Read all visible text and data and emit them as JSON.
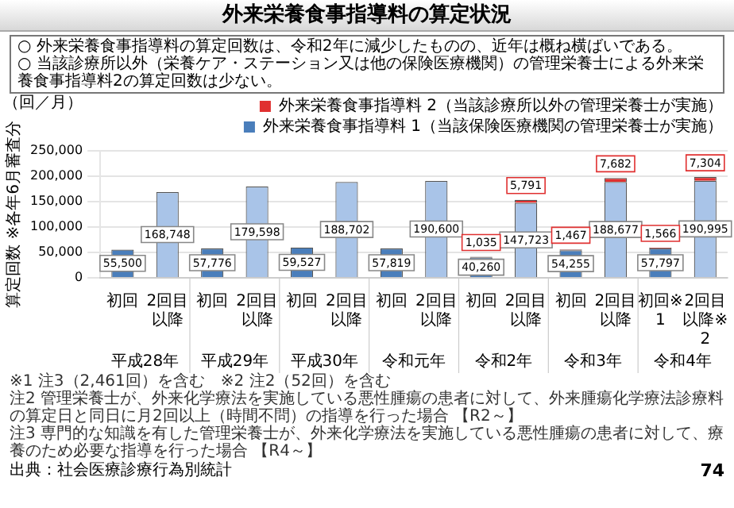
{
  "chart_data": {
    "type": "bar",
    "title": "外来栄養食事指導料の算定状況",
    "subtitle": "○ 外来栄養食事指導料の算定回数は、令和2年に減少したものの、近年は概ね横ばいである。\n○ 当該診療所以外（栄養ケア・ステーション又は他の保険医療機関）の管理栄養士による外来栄養食事指導料2の算定回数は少ない。",
    "ylabel": "算定回数 ※各年6月審査分",
    "categories": [
      "初回",
      "2回目以降",
      "初回",
      "2回目以降",
      "初回",
      "2回目以降",
      "初回",
      "2回目以降",
      "初回",
      "2回目以降",
      "初回",
      "2回目以降",
      "初回※1",
      "2回目以降※2"
    ],
    "series": [
      {
        "name": "外来栄養食事指導料 1（当該保険医療機関の管理栄養士が実施）",
        "color": "#4a7ebb",
        "colors": [
          "#4a7ebb",
          "#a9c4e8",
          "#4a7ebb",
          "#a9c4e8",
          "#4a7ebb",
          "#a9c4e8",
          "#4a7ebb",
          "#a9c4e8",
          "#4a7ebb",
          "#a9c4e8",
          "#4a7ebb",
          "#a9c4e8",
          "#4a7ebb",
          "#a9c4e8"
        ],
        "values": [
          55500,
          168748,
          57776,
          179598,
          59527,
          188702,
          57819,
          190600,
          40260,
          147723,
          54255,
          188677,
          57797,
          190995
        ],
        "value_labels": [
          "55,500",
          "168,748",
          "57,776",
          "179,598",
          "59,527",
          "188,702",
          "57,819",
          "190,600",
          "40,260",
          "147,723",
          "54,255",
          "188,677",
          "57,797",
          "190,995"
        ]
      },
      {
        "name": "外来栄養食事指導料 2（当該診療所以外の管理栄養士が実施）",
        "color": "#e03030",
        "values": [
          null,
          null,
          null,
          null,
          null,
          null,
          null,
          null,
          1035,
          5791,
          1467,
          7682,
          1566,
          7304
        ],
        "value_labels": [
          null,
          null,
          null,
          null,
          null,
          null,
          null,
          null,
          "1,035",
          "5,791",
          "1,467",
          "7,682",
          "1,566",
          "7,304"
        ]
      }
    ],
    "stacked": true,
    "ylim": [
      0,
      250000
    ],
    "yticks": [
      0,
      {
        "value": 50000,
        "label": "50,000"
      },
      {
        "value": 100000,
        "label": "100,000"
      },
      {
        "value": 150000,
        "label": "150,000"
      },
      {
        "value": 200000,
        "label": "200,000"
      },
      {
        "value": 250000,
        "label": "250,000"
      }
    ],
    "grid": "y",
    "legend": "top right",
    "annotations": [
      "平成28年",
      "平成29年",
      "平成30年",
      "令和元年",
      "令和2年",
      "令和3年",
      "令和4年",
      "（回／月）",
      "※1 注3（2,461回）を含む　※2 注2（52回）を含む",
      "注2 管理栄養士が、外来化学療法を実施している悪性腫瘍の患者に対して、外来腫瘍化学療法診療料の算定日と同日に月2回以上（時間不問）の指導を行った場合 【R2～】",
      "注3 専門的な知識を有した管理栄養士が、外来化学療法を実施している悪性腫瘍の患者に対して、療養のため必要な指導を行った場合 【R4～】",
      "出典：社会医療診療行為別統計",
      "74"
    ]
  }
}
